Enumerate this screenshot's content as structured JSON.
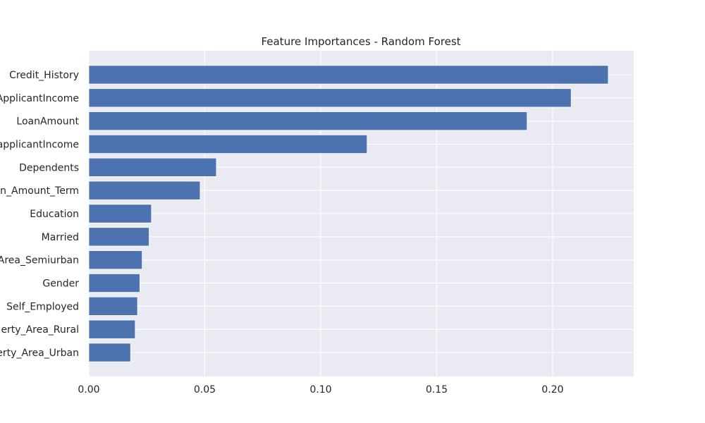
{
  "chart_data": {
    "type": "bar",
    "orientation": "horizontal",
    "title": "Feature Importances - Random Forest",
    "xlabel": "",
    "ylabel": "",
    "categories": [
      "Credit_History",
      "ApplicantIncome",
      "LoanAmount",
      "CoapplicantIncome",
      "Dependents",
      "Loan_Amount_Term",
      "Education",
      "Married",
      "Property_Area_Semiurban",
      "Gender",
      "Self_Employed",
      "Property_Area_Rural",
      "Property_Area_Urban"
    ],
    "category_labels_shown": [
      "Credit_History",
      "ApplicantIncome",
      "LoanAmount",
      "applicantIncome",
      "Dependents",
      "n_Amount_Term",
      "Education",
      "Married",
      "Area_Semiurban",
      "Gender",
      "Self_Employed",
      "erty_Area_Rural",
      "erty_Area_Urban"
    ],
    "values": [
      0.224,
      0.208,
      0.189,
      0.12,
      0.055,
      0.048,
      0.027,
      0.026,
      0.023,
      0.022,
      0.021,
      0.02,
      0.018
    ],
    "xlim": [
      0,
      0.235
    ],
    "xticks": [
      0.0,
      0.05,
      0.1,
      0.15,
      0.2
    ],
    "xtick_labels": [
      "0.00",
      "0.05",
      "0.10",
      "0.15",
      "0.20"
    ],
    "grid": true,
    "legend": "none",
    "colors": {
      "bar": "#4c72b0",
      "plot_background": "#eaeaf2",
      "grid": "#ffffff",
      "text": "#262626"
    }
  }
}
